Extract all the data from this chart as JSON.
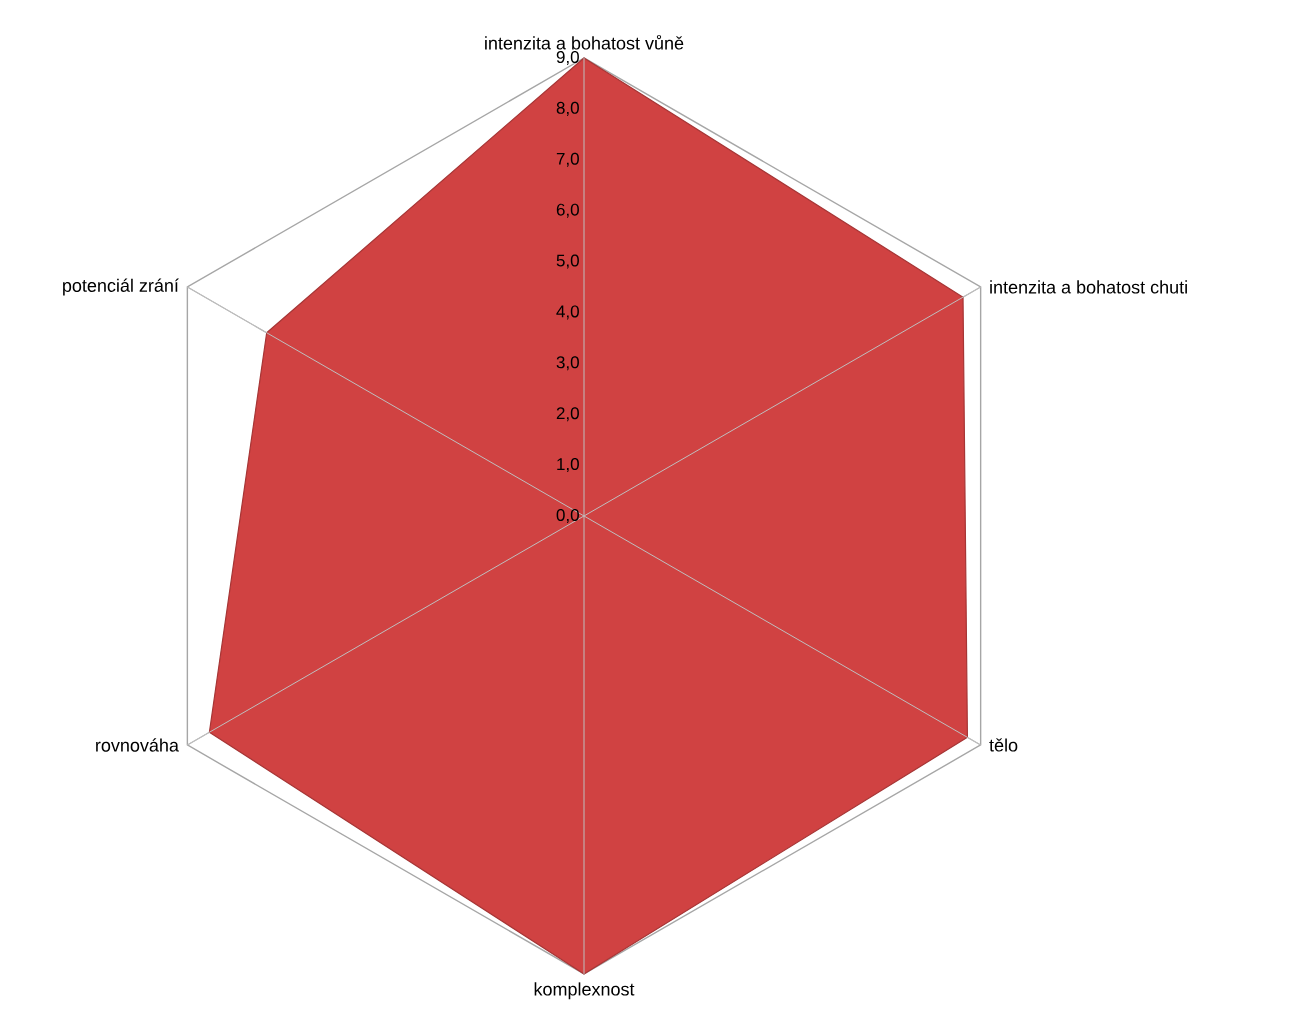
{
  "chart_data": {
    "type": "radar",
    "categories": [
      "intenzita a bohatost vůně",
      "intenzita a bohatost chuti",
      "tělo",
      "komplexnost",
      "rovnováha",
      "potenciál zrání"
    ],
    "series": [
      {
        "color": "#d04242",
        "values": [
          9.0,
          8.6,
          8.7,
          9.0,
          8.5,
          7.2
        ]
      }
    ],
    "ylim": [
      0,
      9
    ],
    "yticks": [
      {
        "value": 0,
        "label": "0,0"
      },
      {
        "value": 1,
        "label": "1,0"
      },
      {
        "value": 2,
        "label": "2,0"
      },
      {
        "value": 3,
        "label": "3,0"
      },
      {
        "value": 4,
        "label": "4,0"
      },
      {
        "value": 5,
        "label": "5,0"
      },
      {
        "value": 6,
        "label": "6,0"
      },
      {
        "value": 7,
        "label": "7,0"
      },
      {
        "value": 8,
        "label": "8,0"
      },
      {
        "value": 9,
        "label": "9,0"
      }
    ],
    "grid": false
  }
}
